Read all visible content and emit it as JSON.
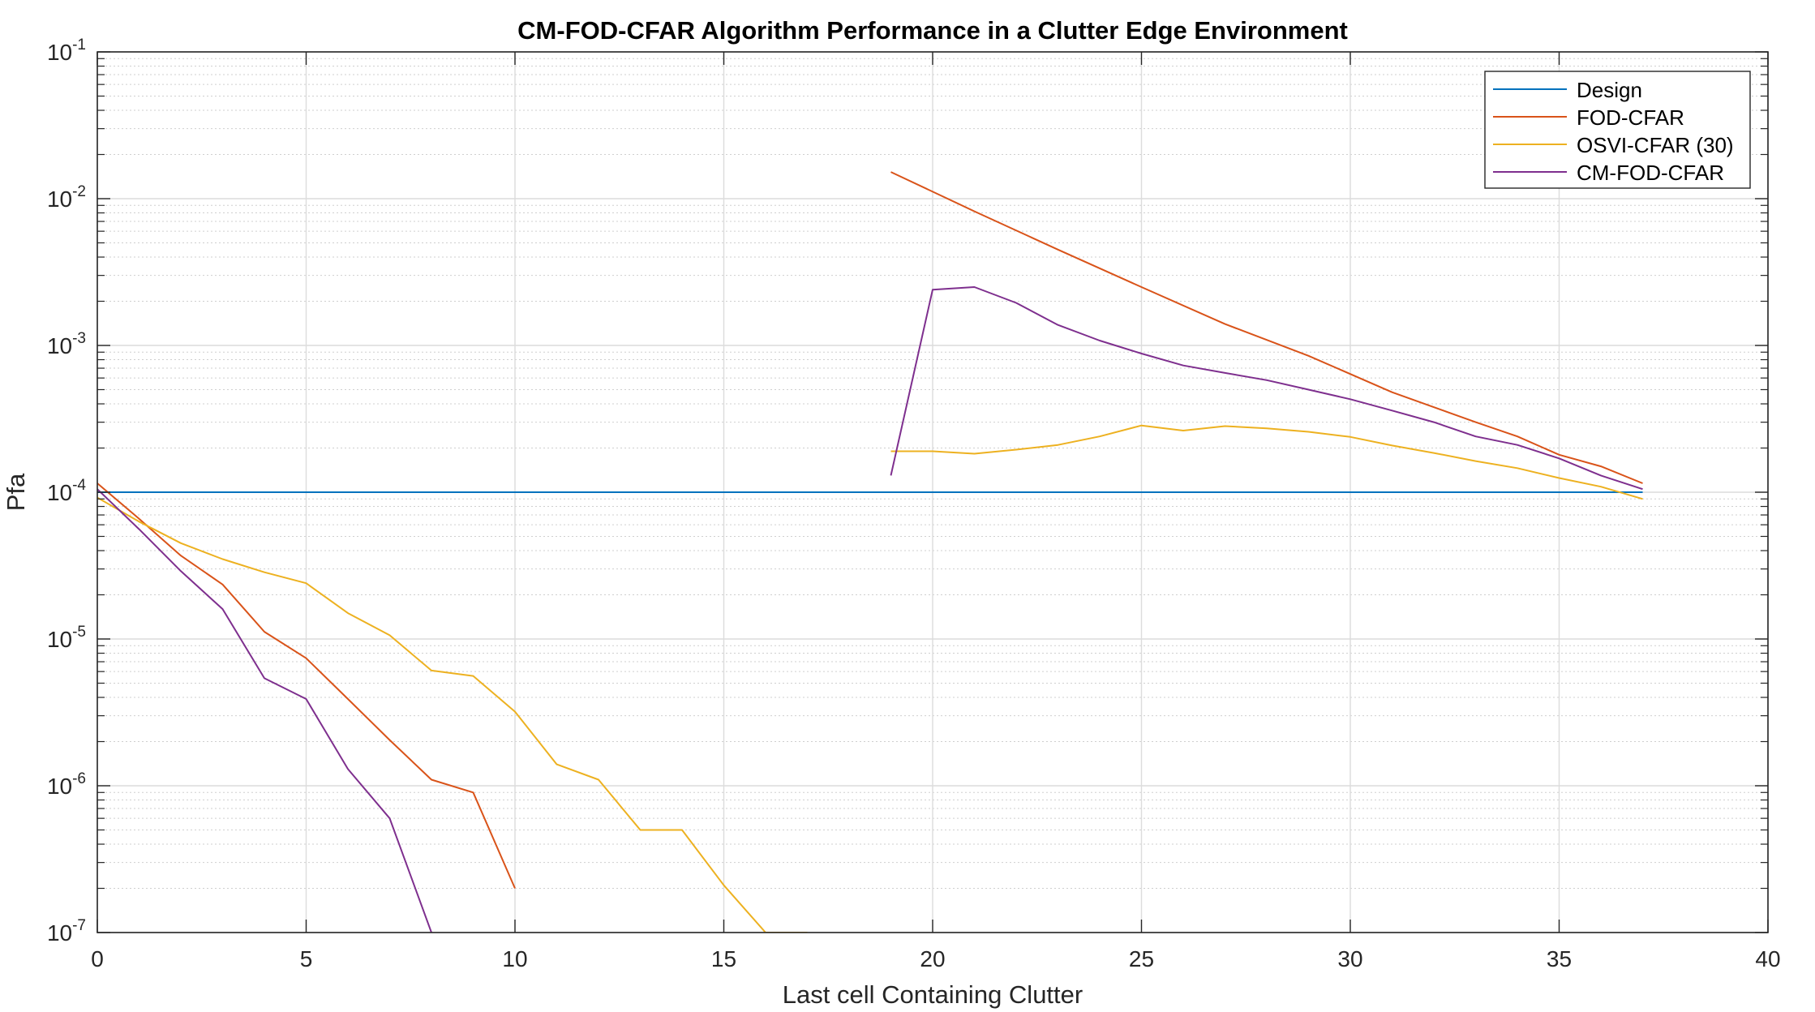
{
  "chart_data": {
    "type": "line",
    "title": "CM-FOD-CFAR Algorithm Performance in a Clutter Edge Environment",
    "xlabel": "Last cell Containing Clutter",
    "ylabel": "Pfa",
    "xlim": [
      0,
      40
    ],
    "ylim": [
      1e-07,
      0.1
    ],
    "yscale": "log",
    "grid": true,
    "minor_grid": true,
    "legend_position": "top-right",
    "x_ticks": [
      0,
      5,
      10,
      15,
      20,
      25,
      30,
      35,
      40
    ],
    "x_tick_labels": [
      "0",
      "5",
      "10",
      "15",
      "20",
      "25",
      "30",
      "35",
      "40"
    ],
    "y_ticks": [
      {
        "value": 1e-07,
        "base": "10",
        "exp": "-7"
      },
      {
        "value": 1e-06,
        "base": "10",
        "exp": "-6"
      },
      {
        "value": 1e-05,
        "base": "10",
        "exp": "-5"
      },
      {
        "value": 0.0001,
        "base": "10",
        "exp": "-4"
      },
      {
        "value": 0.001,
        "base": "10",
        "exp": "-3"
      },
      {
        "value": 0.01,
        "base": "10",
        "exp": "-2"
      },
      {
        "value": 0.1,
        "base": "10",
        "exp": "-1"
      }
    ],
    "series": [
      {
        "name": "Design",
        "color": "#0072BD",
        "points": [
          [
            0,
            0.0001
          ],
          [
            37,
            0.0001
          ]
        ]
      },
      {
        "name": "FOD-CFAR",
        "color": "#D95319",
        "segments": [
          [
            [
              0,
              0.000115
            ],
            [
              1,
              6.6e-05
            ],
            [
              2,
              3.7e-05
            ],
            [
              3,
              2.35e-05
            ],
            [
              4,
              1.12e-05
            ],
            [
              5,
              7.4e-06
            ],
            [
              6,
              3.9e-06
            ],
            [
              7,
              2.05e-06
            ],
            [
              8,
              1.1e-06
            ],
            [
              9,
              9e-07
            ],
            [
              10,
              2e-07
            ]
          ],
          [
            [
              19,
              0.0152
            ],
            [
              21,
              0.0082
            ],
            [
              23,
              0.0045
            ],
            [
              25,
              0.0025
            ],
            [
              27,
              0.0014
            ],
            [
              29,
              0.00085
            ],
            [
              31,
              0.00048
            ],
            [
              33,
              0.0003
            ],
            [
              34,
              0.00024
            ],
            [
              35,
              0.00018
            ],
            [
              36,
              0.00015
            ],
            [
              37,
              0.000115
            ]
          ]
        ]
      },
      {
        "name": "OSVI-CFAR (30)",
        "color": "#EDB120",
        "segments": [
          [
            [
              0,
              9.2e-05
            ],
            [
              1,
              6.3e-05
            ],
            [
              2,
              4.5e-05
            ],
            [
              3,
              3.5e-05
            ],
            [
              4,
              2.85e-05
            ],
            [
              5,
              2.4e-05
            ],
            [
              6,
              1.5e-05
            ],
            [
              7,
              1.06e-05
            ],
            [
              8,
              6.1e-06
            ],
            [
              9,
              5.6e-06
            ],
            [
              10,
              3.2e-06
            ],
            [
              11,
              1.4e-06
            ],
            [
              12,
              1.1e-06
            ],
            [
              13,
              5e-07
            ],
            [
              14,
              5e-07
            ],
            [
              15,
              2.1e-07
            ],
            [
              16,
              1e-07
            ],
            [
              17,
              1e-07
            ]
          ],
          [
            [
              19,
              0.00019
            ],
            [
              20,
              0.00019
            ],
            [
              21,
              0.000183
            ],
            [
              22,
              0.000195
            ],
            [
              23,
              0.00021
            ],
            [
              24,
              0.00024
            ],
            [
              25,
              0.000285
            ],
            [
              26,
              0.000263
            ],
            [
              27,
              0.000282
            ],
            [
              28,
              0.000272
            ],
            [
              29,
              0.000258
            ],
            [
              30,
              0.000238
            ],
            [
              31,
              0.000208
            ],
            [
              32,
              0.000185
            ],
            [
              33,
              0.000163
            ],
            [
              34,
              0.000146
            ],
            [
              35,
              0.000125
            ],
            [
              36,
              0.000109
            ],
            [
              37,
              9e-05
            ]
          ]
        ]
      },
      {
        "name": "CM-FOD-CFAR",
        "color": "#7E2F8E",
        "segments": [
          [
            [
              0,
              0.000105
            ],
            [
              1,
              5.6e-05
            ],
            [
              2,
              2.9e-05
            ],
            [
              3,
              1.6e-05
            ],
            [
              4,
              5.4e-06
            ],
            [
              5,
              3.9e-06
            ],
            [
              6,
              1.3e-06
            ],
            [
              7,
              6e-07
            ],
            [
              8,
              1e-07
            ]
          ],
          [
            [
              19,
              0.00013
            ],
            [
              20,
              0.0024
            ],
            [
              21,
              0.0025
            ],
            [
              22,
              0.00195
            ],
            [
              23,
              0.00138
            ],
            [
              24,
              0.00108
            ],
            [
              25,
              0.00088
            ],
            [
              26,
              0.00073
            ],
            [
              27,
              0.00065
            ],
            [
              28,
              0.00058
            ],
            [
              29,
              0.0005
            ],
            [
              30,
              0.00043
            ],
            [
              31,
              0.00036
            ],
            [
              32,
              0.0003
            ],
            [
              33,
              0.00024
            ],
            [
              34,
              0.00021
            ],
            [
              35,
              0.00017
            ],
            [
              36,
              0.00013
            ],
            [
              37,
              0.000105
            ]
          ]
        ]
      }
    ]
  }
}
